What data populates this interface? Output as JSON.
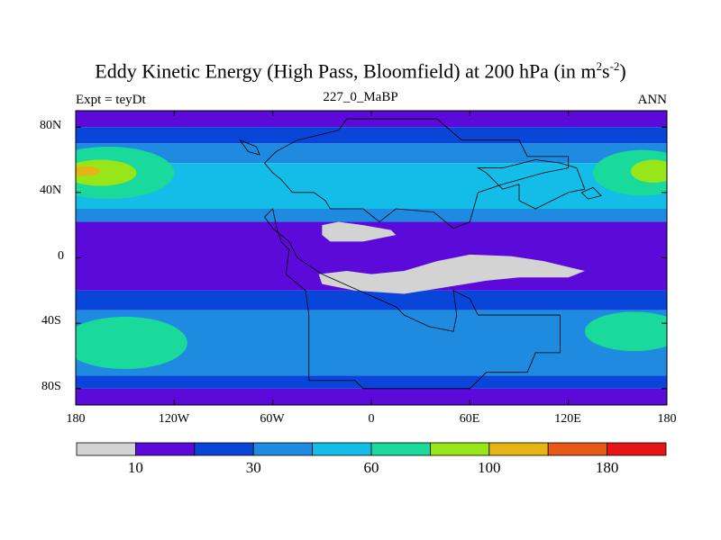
{
  "title": {
    "main": "Eddy Kinetic Energy (High Pass, Bloomfield) at 200 hPa (in m",
    "sup1": "2",
    "mid": "s",
    "sup2": "-2",
    "close": ")"
  },
  "subtitle": {
    "left": "Expt = teyDt",
    "center": "227_0_MaBP",
    "right": "ANN"
  },
  "axes": {
    "y_ticks": [
      "80N",
      "40N",
      "0",
      "40S",
      "80S"
    ],
    "x_ticks": [
      "180",
      "120W",
      "60W",
      "0",
      "60E",
      "120E",
      "180"
    ]
  },
  "colorbar": {
    "colors": [
      "#d3d3d3",
      "#5b0ad9",
      "#0a45d9",
      "#1e8be0",
      "#14bde8",
      "#19d99b",
      "#96e619",
      "#e6b414",
      "#e65a14",
      "#e61414"
    ],
    "labels": [
      "10",
      "30",
      "60",
      "100",
      "180"
    ],
    "label_boundaries": [
      1,
      3,
      5,
      7,
      9
    ]
  },
  "map": {
    "projection": "cylindrical-equidistant",
    "lon_range": [
      -180,
      180
    ],
    "lat_range": [
      -90,
      90
    ],
    "zonal_bands": [
      {
        "lat": [
          80,
          90
        ],
        "color": "#5b0ad9"
      },
      {
        "lat": [
          70,
          80
        ],
        "color": "#0a45d9"
      },
      {
        "lat": [
          58,
          70
        ],
        "color": "#1e8be0"
      },
      {
        "lat": [
          30,
          58
        ],
        "color": "#14bde8"
      },
      {
        "lat": [
          22,
          30
        ],
        "color": "#1e8be0"
      },
      {
        "lat": [
          -20,
          22
        ],
        "color": "#5b0ad9"
      },
      {
        "lat": [
          -32,
          -20
        ],
        "color": "#0a45d9"
      },
      {
        "lat": [
          -72,
          -32
        ],
        "color": "#1e8be0"
      },
      {
        "lat": [
          -80,
          -72
        ],
        "color": "#0a45d9"
      },
      {
        "lat": [
          -90,
          -80
        ],
        "color": "#5b0ad9"
      }
    ],
    "jet_regions": [
      {
        "center": [
          -160,
          52
        ],
        "rx": 40,
        "ry": 16,
        "color": "#19d99b"
      },
      {
        "center": [
          -165,
          52
        ],
        "rx": 22,
        "ry": 8,
        "color": "#96e619"
      },
      {
        "center": [
          -175,
          53
        ],
        "rx": 10,
        "ry": 3,
        "color": "#e6b414"
      },
      {
        "center": [
          165,
          52
        ],
        "rx": 30,
        "ry": 14,
        "color": "#19d99b"
      },
      {
        "center": [
          172,
          53
        ],
        "rx": 14,
        "ry": 7,
        "color": "#96e619"
      },
      {
        "center": [
          -150,
          -52
        ],
        "rx": 38,
        "ry": 16,
        "color": "#19d99b"
      },
      {
        "center": [
          160,
          -45
        ],
        "rx": 30,
        "ry": 12,
        "color": "#19d99b"
      }
    ],
    "low_regions": [
      {
        "points": [
          [
            -30,
            20
          ],
          [
            -20,
            22
          ],
          [
            -5,
            20
          ],
          [
            12,
            17
          ],
          [
            15,
            14
          ],
          [
            -5,
            10
          ],
          [
            -25,
            10
          ],
          [
            -30,
            14
          ]
        ],
        "color": "#d3d3d3"
      },
      {
        "points": [
          [
            -32,
            -10
          ],
          [
            -15,
            -8
          ],
          [
            0,
            -10
          ],
          [
            20,
            -8
          ],
          [
            40,
            -2
          ],
          [
            60,
            2
          ],
          [
            85,
            1
          ],
          [
            105,
            -2
          ],
          [
            130,
            -8
          ],
          [
            120,
            -12
          ],
          [
            90,
            -12
          ],
          [
            70,
            -14
          ],
          [
            45,
            -18
          ],
          [
            20,
            -22
          ],
          [
            -10,
            -20
          ],
          [
            -30,
            -16
          ]
        ],
        "color": "#d3d3d3"
      }
    ],
    "coastlines": [
      [
        [
          -20,
          78
        ],
        [
          -15,
          85
        ],
        [
          40,
          85
        ],
        [
          55,
          72
        ],
        [
          90,
          72
        ],
        [
          95,
          62
        ],
        [
          120,
          62
        ],
        [
          120,
          55
        ],
        [
          105,
          52
        ],
        [
          80,
          45
        ],
        [
          65,
          40
        ],
        [
          60,
          22
        ],
        [
          50,
          18
        ],
        [
          38,
          28
        ],
        [
          15,
          30
        ],
        [
          5,
          22
        ],
        [
          -5,
          30
        ],
        [
          -25,
          30
        ],
        [
          -28,
          35
        ],
        [
          -35,
          40
        ],
        [
          -48,
          40
        ],
        [
          -55,
          48
        ],
        [
          -60,
          52
        ],
        [
          -65,
          58
        ],
        [
          -58,
          65
        ],
        [
          -45,
          72
        ],
        [
          -20,
          78
        ]
      ],
      [
        [
          -70,
          68
        ],
        [
          -80,
          72
        ],
        [
          -75,
          65
        ],
        [
          -68,
          63
        ],
        [
          -70,
          68
        ]
      ],
      [
        [
          -65,
          25
        ],
        [
          -60,
          30
        ],
        [
          -58,
          20
        ],
        [
          -55,
          10
        ],
        [
          -50,
          5
        ],
        [
          -52,
          -10
        ],
        [
          -40,
          -20
        ],
        [
          -38,
          -35
        ],
        [
          -38,
          -75
        ],
        [
          -10,
          -75
        ],
        [
          -5,
          -80
        ],
        [
          60,
          -80
        ],
        [
          70,
          -70
        ],
        [
          95,
          -70
        ],
        [
          100,
          -58
        ],
        [
          115,
          -58
        ],
        [
          115,
          -35
        ],
        [
          65,
          -35
        ],
        [
          60,
          -25
        ],
        [
          50,
          -20
        ],
        [
          52,
          -35
        ],
        [
          50,
          -45
        ],
        [
          35,
          -42
        ],
        [
          20,
          -35
        ],
        [
          15,
          -30
        ],
        [
          -30,
          -10
        ],
        [
          -45,
          0
        ],
        [
          -50,
          10
        ],
        [
          -60,
          18
        ],
        [
          -65,
          25
        ]
      ],
      [
        [
          90,
          45
        ],
        [
          80,
          42
        ],
        [
          70,
          52
        ],
        [
          65,
          55
        ],
        [
          80,
          55
        ],
        [
          100,
          60
        ],
        [
          115,
          58
        ],
        [
          125,
          55
        ],
        [
          130,
          42
        ],
        [
          120,
          40
        ],
        [
          110,
          35
        ],
        [
          100,
          30
        ],
        [
          90,
          35
        ],
        [
          90,
          45
        ]
      ],
      [
        [
          128,
          40
        ],
        [
          135,
          43
        ],
        [
          140,
          38
        ],
        [
          132,
          36
        ],
        [
          128,
          40
        ]
      ]
    ]
  }
}
